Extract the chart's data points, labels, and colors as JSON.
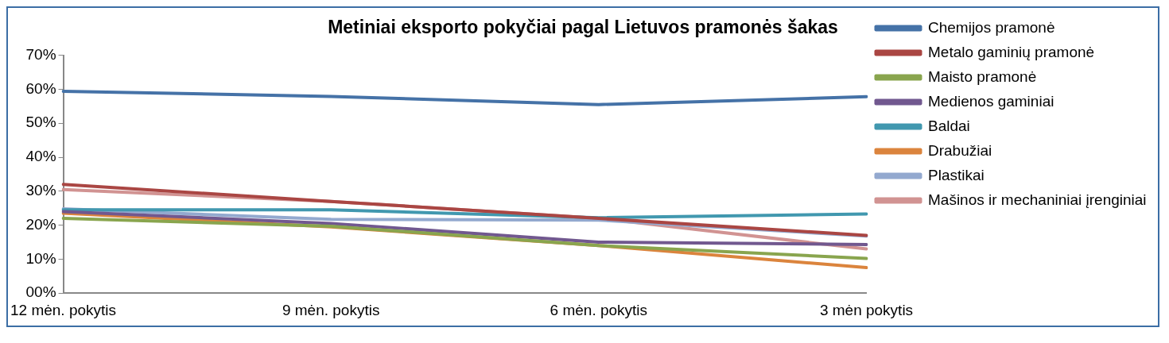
{
  "chart_data": {
    "type": "line",
    "title": "Metiniai eksporto pokyčiai pagal Lietuvos pramonės šakas",
    "categories": [
      "12 mėn. pokytis",
      "9 mėn. pokytis",
      "6 mėn. pokytis",
      "3 mėn pokytis"
    ],
    "ylim": [
      0,
      70
    ],
    "yticks": [
      {
        "value": 0,
        "label": "00%"
      },
      {
        "value": 10,
        "label": "10%"
      },
      {
        "value": 20,
        "label": "20%"
      },
      {
        "value": 30,
        "label": "30%"
      },
      {
        "value": 40,
        "label": "40%"
      },
      {
        "value": 50,
        "label": "50%"
      },
      {
        "value": 60,
        "label": "60%"
      },
      {
        "value": 70,
        "label": "70%"
      }
    ],
    "grid": false,
    "legend": "right",
    "marker": "none",
    "line_style": "solid",
    "series": [
      {
        "name": "Chemijos pramonė",
        "color": "#4572a7",
        "values": [
          59.4,
          57.9,
          55.5,
          57.8
        ]
      },
      {
        "name": "Metalo gaminių pramonė",
        "color": "#aa4643",
        "values": [
          32,
          27,
          22,
          17
        ]
      },
      {
        "name": "Maisto pramonė",
        "color": "#89a54e",
        "values": [
          22,
          19.7,
          14,
          10.2
        ]
      },
      {
        "name": "Medienos gaminiai",
        "color": "#71588f",
        "values": [
          24,
          20.5,
          15,
          14.3
        ]
      },
      {
        "name": "Baldai",
        "color": "#4198af",
        "values": [
          24.5,
          24.5,
          22.2,
          23.3
        ]
      },
      {
        "name": "Drabužiai",
        "color": "#db843d",
        "values": [
          23.5,
          19.5,
          14,
          7.5
        ]
      },
      {
        "name": "Plastikai",
        "color": "#93a9cf",
        "values": [
          24.8,
          21.7,
          21.5,
          16.8
        ]
      },
      {
        "name": "Mašinos ir mechaniniai įrenginiai",
        "color": "#d19392",
        "values": [
          30.5,
          27,
          22,
          13
        ]
      }
    ]
  }
}
